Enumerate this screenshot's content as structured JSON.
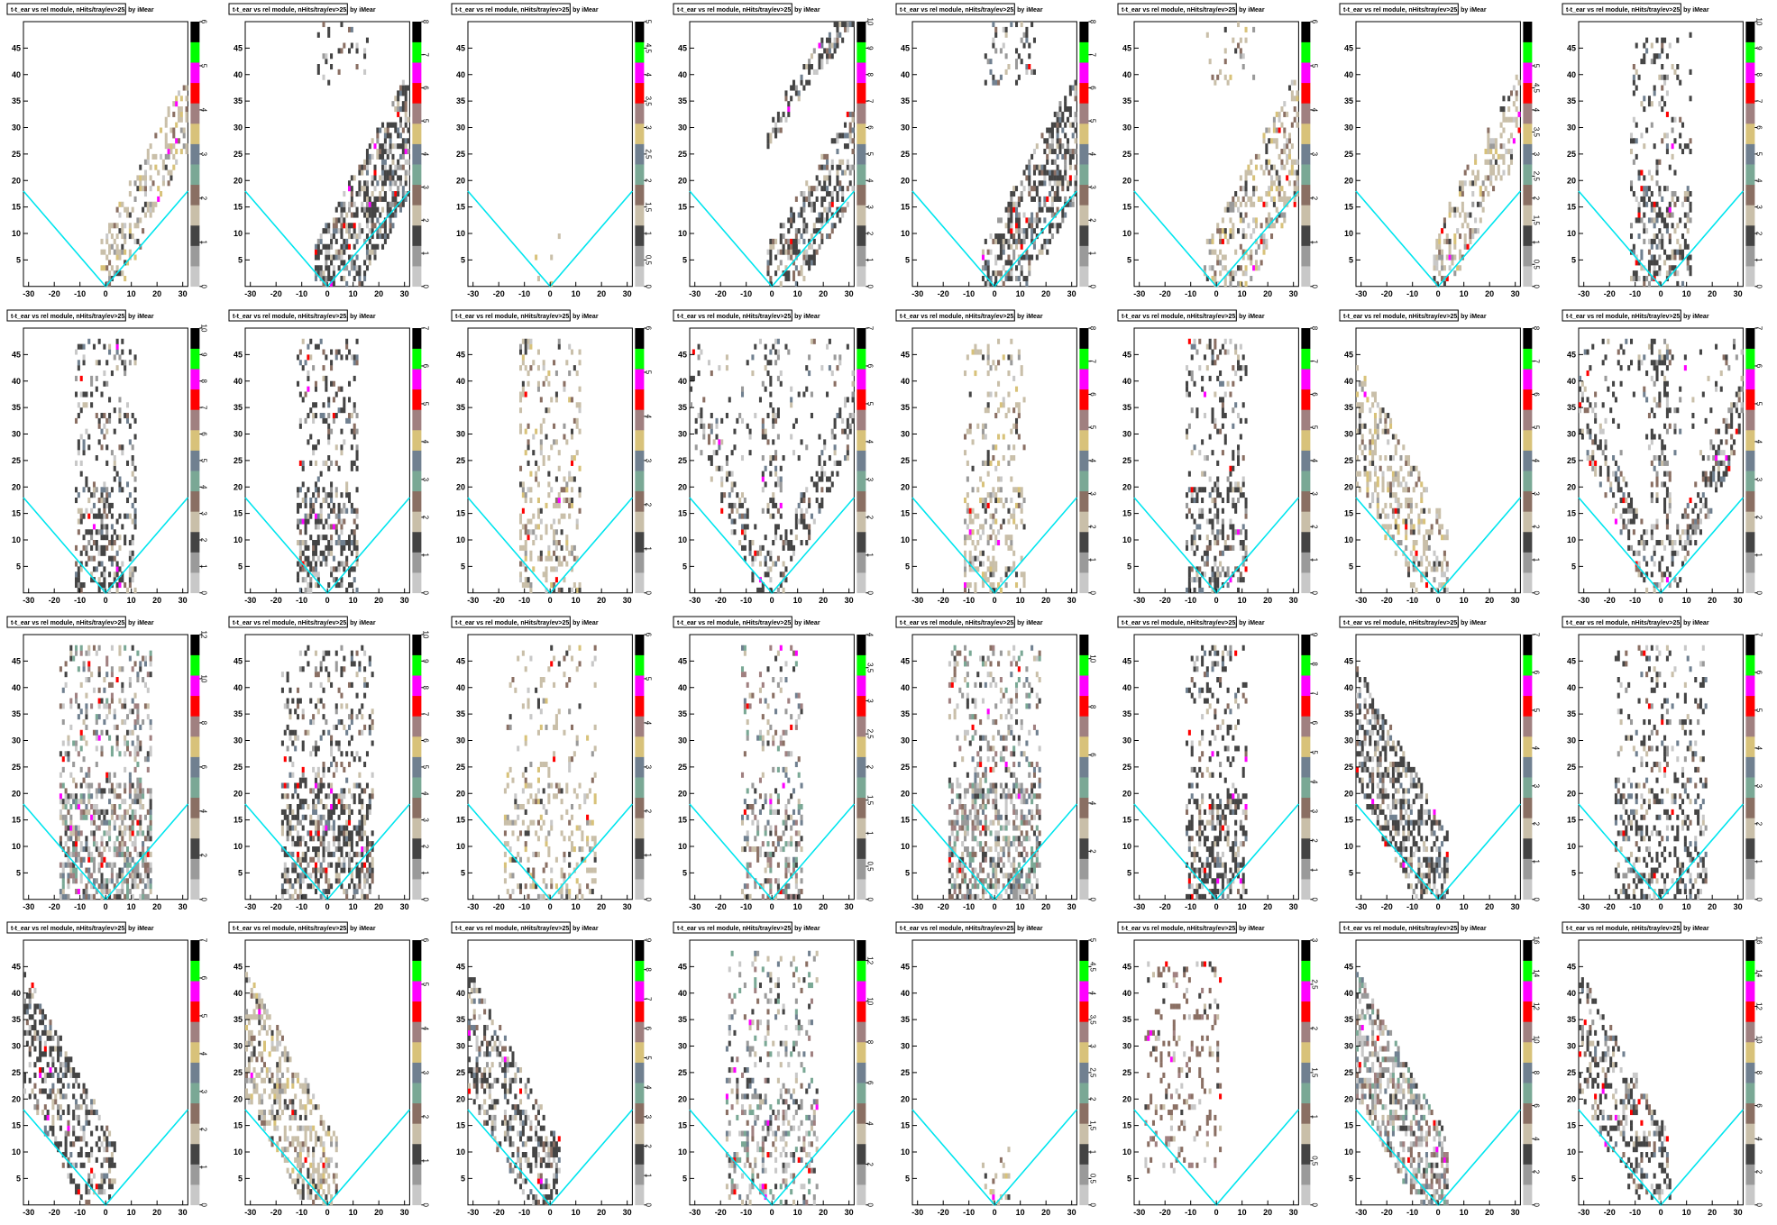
{
  "page": {
    "rows": 4,
    "cols": 8
  },
  "palette": [
    "#c8c8c8",
    "#9a9a9a",
    "#444444",
    "#c9bfa9",
    "#8a6f63",
    "#7aa895",
    "#708090",
    "#d8c27a",
    "#a08080",
    "#ff0000",
    "#ff00ff",
    "#00ff00",
    "#000000"
  ],
  "chart_defaults": {
    "type": "heatmap",
    "title": "t-t_ear vs rel module, nHits/tray/ev>25, by iMear",
    "xlim": [
      -32,
      32
    ],
    "ylim": [
      0,
      50
    ],
    "xticks": [
      -30,
      -20,
      -10,
      0,
      10,
      20,
      30
    ],
    "xtick_labels": [
      "-30",
      "-20",
      "-10",
      "0",
      "10",
      "20",
      "30"
    ],
    "yticks": [
      5,
      10,
      15,
      20,
      25,
      30,
      35,
      40,
      45
    ],
    "ytick_labels": [
      "5",
      "10",
      "15",
      "20",
      "25",
      "30",
      "35",
      "40",
      "45"
    ],
    "cone_line_color": "#00e5ee",
    "cone": {
      "vertex": [
        0,
        0
      ],
      "left_end": [
        -32,
        18
      ],
      "right_end": [
        32,
        18
      ]
    }
  },
  "chart_data": [
    {
      "panel": 1,
      "type": "heatmap",
      "max": 6,
      "colorbar_ticks": [
        "0",
        "1",
        "2",
        "3",
        "4",
        "5",
        "6"
      ],
      "pattern": "diag_right",
      "density": 0.35,
      "color_bias": "tan"
    },
    {
      "panel": 2,
      "type": "heatmap",
      "max": 8,
      "colorbar_ticks": [
        "0",
        "1",
        "2",
        "3",
        "4",
        "5",
        "6",
        "7",
        "8"
      ],
      "pattern": "diag_right_wide",
      "density": 0.55,
      "color_bias": "dark"
    },
    {
      "panel": 3,
      "type": "heatmap",
      "max": 5,
      "colorbar_ticks": [
        "0",
        "0.5",
        "1",
        "1.5",
        "2",
        "2.5",
        "3",
        "3.5",
        "4",
        "4.5",
        "5"
      ],
      "pattern": "sparse_center",
      "density": 0.05,
      "color_bias": "tan"
    },
    {
      "panel": 4,
      "type": "heatmap",
      "max": 10,
      "colorbar_ticks": [
        "0",
        "1",
        "2",
        "3",
        "4",
        "5",
        "6",
        "7",
        "8",
        "9",
        "10"
      ],
      "pattern": "two_diag",
      "density": 0.45,
      "color_bias": "dark"
    },
    {
      "panel": 5,
      "type": "heatmap",
      "max": 8,
      "colorbar_ticks": [
        "0",
        "1",
        "2",
        "3",
        "4",
        "5",
        "6",
        "7",
        "8"
      ],
      "pattern": "diag_right_wide",
      "density": 0.45,
      "color_bias": "dark"
    },
    {
      "panel": 6,
      "type": "heatmap",
      "max": 6,
      "colorbar_ticks": [
        "0",
        "1",
        "2",
        "3",
        "4",
        "5",
        "6"
      ],
      "pattern": "diag_right_wide",
      "density": 0.35,
      "color_bias": "tan"
    },
    {
      "panel": 7,
      "type": "heatmap",
      "max": 6,
      "colorbar_ticks": [
        "0",
        "0.5",
        "1",
        "1.5",
        "2",
        "2.5",
        "3",
        "3.5",
        "4",
        "4.5",
        "5"
      ],
      "pattern": "diag_right",
      "density": 0.35,
      "color_bias": "tan"
    },
    {
      "panel": 8,
      "type": "heatmap",
      "max": 10,
      "colorbar_ticks": [
        "0",
        "1",
        "2",
        "3",
        "4",
        "5",
        "6",
        "7",
        "8",
        "9",
        "10"
      ],
      "pattern": "center_column",
      "density": 0.35,
      "color_bias": "dark"
    },
    {
      "panel": 9,
      "type": "heatmap",
      "max": 10,
      "colorbar_ticks": [
        "0",
        "1",
        "2",
        "3",
        "4",
        "5",
        "6",
        "7",
        "8",
        "9",
        "10"
      ],
      "pattern": "center_column",
      "density": 0.4,
      "color_bias": "dark"
    },
    {
      "panel": 10,
      "type": "heatmap",
      "max": 7,
      "colorbar_ticks": [
        "0",
        "1",
        "2",
        "3",
        "4",
        "5",
        "6",
        "7"
      ],
      "pattern": "center_column",
      "density": 0.45,
      "color_bias": "dark"
    },
    {
      "panel": 11,
      "type": "heatmap",
      "max": 6,
      "colorbar_ticks": [
        "0",
        "1",
        "2",
        "3",
        "4",
        "5",
        "6"
      ],
      "pattern": "center_column",
      "density": 0.35,
      "color_bias": "tan"
    },
    {
      "panel": 12,
      "type": "heatmap",
      "max": 7,
      "colorbar_ticks": [
        "0",
        "1",
        "2",
        "3",
        "4",
        "5",
        "6",
        "7"
      ],
      "pattern": "v_shape",
      "density": 0.3,
      "color_bias": "dark"
    },
    {
      "panel": 13,
      "type": "heatmap",
      "max": 8,
      "colorbar_ticks": [
        "0",
        "1",
        "2",
        "3",
        "4",
        "5",
        "6",
        "7",
        "8"
      ],
      "pattern": "center_column",
      "density": 0.35,
      "color_bias": "tan"
    },
    {
      "panel": 14,
      "type": "heatmap",
      "max": 8,
      "colorbar_ticks": [
        "0",
        "1",
        "2",
        "3",
        "4",
        "5",
        "6",
        "7",
        "8"
      ],
      "pattern": "center_column",
      "density": 0.4,
      "color_bias": "dark"
    },
    {
      "panel": 15,
      "type": "heatmap",
      "max": 8,
      "colorbar_ticks": [
        "0",
        "1",
        "2",
        "3",
        "4",
        "5",
        "6",
        "7",
        "8"
      ],
      "pattern": "diag_left",
      "density": 0.35,
      "color_bias": "tan"
    },
    {
      "panel": 16,
      "type": "heatmap",
      "max": 7,
      "colorbar_ticks": [
        "0",
        "1",
        "2",
        "3",
        "4",
        "5",
        "6",
        "7"
      ],
      "pattern": "v_shape",
      "density": 0.35,
      "color_bias": "dark"
    },
    {
      "panel": 17,
      "type": "heatmap",
      "max": 12,
      "colorbar_ticks": [
        "0",
        "2",
        "4",
        "6",
        "8",
        "10",
        "12"
      ],
      "pattern": "wide_column",
      "density": 0.55,
      "color_bias": "gray"
    },
    {
      "panel": 18,
      "type": "heatmap",
      "max": 10,
      "colorbar_ticks": [
        "0",
        "1",
        "2",
        "3",
        "4",
        "5",
        "6",
        "7",
        "8",
        "9",
        "10"
      ],
      "pattern": "wide_column",
      "density": 0.5,
      "color_bias": "dark"
    },
    {
      "panel": 19,
      "type": "heatmap",
      "max": 6,
      "colorbar_ticks": [
        "0",
        "1",
        "2",
        "3",
        "4",
        "5",
        "6"
      ],
      "pattern": "wide_column",
      "density": 0.25,
      "color_bias": "tan"
    },
    {
      "panel": 20,
      "type": "heatmap",
      "max": 4,
      "colorbar_ticks": [
        "0",
        "0.5",
        "1",
        "1.5",
        "2",
        "2.5",
        "3",
        "3.5",
        "4"
      ],
      "pattern": "center_column",
      "density": 0.3,
      "color_bias": "mauve"
    },
    {
      "panel": 21,
      "type": "heatmap",
      "max": 11,
      "colorbar_ticks": [
        "0",
        "2",
        "4",
        "6",
        "8",
        "10"
      ],
      "pattern": "wide_column",
      "density": 0.5,
      "color_bias": "gray"
    },
    {
      "panel": 22,
      "type": "heatmap",
      "max": 9,
      "colorbar_ticks": [
        "0",
        "1",
        "2",
        "3",
        "4",
        "5",
        "6",
        "7",
        "8",
        "9"
      ],
      "pattern": "center_column",
      "density": 0.45,
      "color_bias": "dark"
    },
    {
      "panel": 23,
      "type": "heatmap",
      "max": 7,
      "colorbar_ticks": [
        "0",
        "1",
        "2",
        "3",
        "4",
        "5",
        "6",
        "7"
      ],
      "pattern": "diag_left",
      "density": 0.5,
      "color_bias": "dark"
    },
    {
      "panel": 24,
      "type": "heatmap",
      "max": 7,
      "colorbar_ticks": [
        "0",
        "1",
        "2",
        "3",
        "4",
        "5",
        "6",
        "7"
      ],
      "pattern": "wide_column",
      "density": 0.35,
      "color_bias": "dark"
    },
    {
      "panel": 25,
      "type": "heatmap",
      "max": 7,
      "colorbar_ticks": [
        "0",
        "1",
        "2",
        "3",
        "4",
        "5",
        "6",
        "7"
      ],
      "pattern": "diag_left",
      "density": 0.4,
      "color_bias": "dark"
    },
    {
      "panel": 26,
      "type": "heatmap",
      "max": 6,
      "colorbar_ticks": [
        "0",
        "1",
        "2",
        "3",
        "4",
        "5",
        "6"
      ],
      "pattern": "diag_left",
      "density": 0.45,
      "color_bias": "tan"
    },
    {
      "panel": 27,
      "type": "heatmap",
      "max": 9,
      "colorbar_ticks": [
        "0",
        "1",
        "2",
        "3",
        "4",
        "5",
        "6",
        "7",
        "8",
        "9"
      ],
      "pattern": "diag_left",
      "density": 0.45,
      "color_bias": "dark"
    },
    {
      "panel": 28,
      "type": "heatmap",
      "max": 13,
      "colorbar_ticks": [
        "0",
        "2",
        "4",
        "6",
        "8",
        "10",
        "12"
      ],
      "pattern": "wide_column",
      "density": 0.3,
      "color_bias": "gray"
    },
    {
      "panel": 29,
      "type": "heatmap",
      "max": 5,
      "colorbar_ticks": [
        "0",
        "0.5",
        "1",
        "1.5",
        "2",
        "2.5",
        "3",
        "3.5",
        "4",
        "4.5",
        "5"
      ],
      "pattern": "sparse_center",
      "density": 0.12,
      "color_bias": "tan"
    },
    {
      "panel": 30,
      "type": "heatmap",
      "max": 3,
      "colorbar_ticks": [
        "0",
        "0.5",
        "1",
        "1.5",
        "2",
        "2.5",
        "3"
      ],
      "pattern": "sparse_left",
      "density": 0.18,
      "color_bias": "brown"
    },
    {
      "panel": 31,
      "type": "heatmap",
      "max": 16,
      "colorbar_ticks": [
        "0",
        "2",
        "4",
        "6",
        "8",
        "10",
        "12",
        "14",
        "16"
      ],
      "pattern": "diag_left",
      "density": 0.55,
      "color_bias": "gray"
    },
    {
      "panel": 32,
      "type": "heatmap",
      "max": 16,
      "colorbar_ticks": [
        "0",
        "2",
        "4",
        "6",
        "8",
        "10",
        "12",
        "14",
        "16"
      ],
      "pattern": "diag_left",
      "density": 0.35,
      "color_bias": "dark"
    }
  ]
}
